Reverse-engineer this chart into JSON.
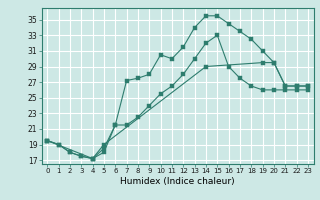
{
  "title": "",
  "xlabel": "Humidex (Indice chaleur)",
  "bg_color": "#cde8e5",
  "grid_color": "#ffffff",
  "line_color": "#2e7d6e",
  "xlim": [
    -0.5,
    23.5
  ],
  "ylim": [
    16.5,
    36.5
  ],
  "xticks": [
    0,
    1,
    2,
    3,
    4,
    5,
    6,
    7,
    8,
    9,
    10,
    11,
    12,
    13,
    14,
    15,
    16,
    17,
    18,
    19,
    20,
    21,
    22,
    23
  ],
  "yticks": [
    17,
    19,
    21,
    23,
    25,
    27,
    29,
    31,
    33,
    35
  ],
  "series1_x": [
    0,
    1,
    2,
    3,
    4,
    5,
    6,
    7,
    8,
    9,
    10,
    11,
    12,
    13,
    14,
    15,
    16,
    17,
    18,
    19,
    20,
    21,
    22,
    23
  ],
  "series1_y": [
    19.5,
    19.0,
    18.0,
    17.5,
    17.2,
    18.0,
    21.5,
    27.2,
    27.5,
    28.0,
    30.5,
    30.0,
    31.5,
    34.0,
    35.5,
    35.5,
    34.5,
    33.5,
    32.5,
    31.0,
    29.5,
    26.5,
    26.5,
    26.5
  ],
  "series2_x": [
    0,
    1,
    2,
    3,
    4,
    5,
    6,
    7,
    8,
    9,
    10,
    11,
    12,
    13,
    14,
    15,
    16,
    17,
    18,
    19,
    20,
    21,
    22,
    23
  ],
  "series2_y": [
    19.5,
    19.0,
    18.0,
    17.5,
    17.2,
    18.5,
    21.5,
    21.5,
    22.5,
    24.0,
    25.5,
    26.5,
    28.0,
    30.0,
    32.0,
    33.0,
    29.0,
    27.5,
    26.5,
    26.0,
    26.0,
    26.0,
    26.0,
    26.0
  ],
  "series3_x": [
    0,
    4,
    5,
    14,
    19,
    20,
    21,
    22,
    23
  ],
  "series3_y": [
    19.5,
    17.2,
    19.0,
    29.0,
    29.5,
    29.5,
    26.5,
    26.5,
    26.5
  ]
}
